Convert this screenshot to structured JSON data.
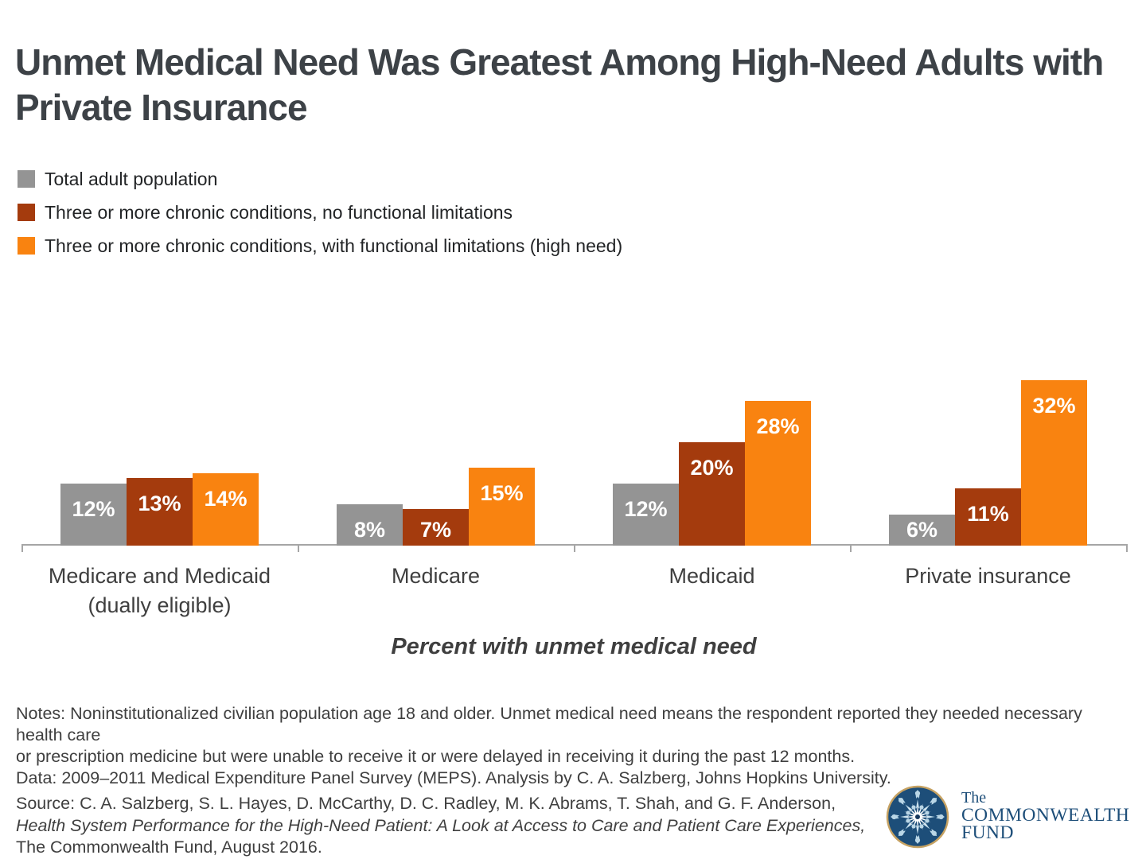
{
  "title": "Unmet Medical Need Was Greatest Among High-Need Adults with\nPrivate Insurance",
  "chart_data": {
    "type": "bar",
    "categories": [
      "Medicare and Medicaid\n(dually eligible)",
      "Medicare",
      "Medicaid",
      "Private insurance"
    ],
    "series": [
      {
        "name": "Total adult population",
        "color": "#949494",
        "values": [
          12,
          8,
          12,
          6
        ]
      },
      {
        "name": "Three or more chronic conditions, no functional limitations",
        "color": "#A43B0D",
        "values": [
          13,
          7,
          20,
          11
        ]
      },
      {
        "name": "Three or more chronic conditions, with functional limitations (high need)",
        "color": "#F98310",
        "values": [
          14,
          15,
          28,
          32
        ]
      }
    ],
    "value_suffix": "%",
    "title": "Unmet Medical Need Was Greatest Among High-Need Adults with Private Insurance",
    "xlabel": "Percent with unmet medical need",
    "ylabel": "",
    "ylim": [
      0,
      35
    ],
    "grid": false,
    "legend_position": "top-left",
    "bar_labels_inside": true
  },
  "axis_title": "Percent with unmet medical need",
  "notes_lines": [
    "Notes: Noninstitutionalized civilian population age 18 and older. Unmet medical need means the respondent reported they needed necessary health care",
    "or prescription medicine but were unable to receive it or were delayed in receiving it during the past 12 months.",
    "Data: 2009–2011 Medical Expenditure Panel Survey (MEPS). Analysis by C. A. Salzberg, Johns Hopkins University."
  ],
  "source": {
    "line1": "Source: C. A. Salzberg, S. L. Hayes, D. McCarthy, D. C. Radley, M. K. Abrams, T. Shah, and G. F. Anderson,",
    "line2": "Health System Performance for the High-Need Patient: A Look at Access to Care and Patient Care Experiences,",
    "line3": "The Commonwealth Fund, August 2016."
  },
  "logo": {
    "the": "The",
    "commonwealth": "COMMONWEALTH",
    "fund": "FUND",
    "icon": "commonwealth-fund-starburst-icon"
  },
  "colors": {
    "title_text": "#3d4247",
    "axis_line": "#a6a6a6",
    "label_text": "#3f3f3f",
    "bar_label_text": "#ffffff",
    "gray_series": "#949494",
    "brick_series": "#A43B0D",
    "orange_series": "#F98310",
    "logo_navy": "#1d4e79",
    "logo_gold": "#c6a262"
  }
}
